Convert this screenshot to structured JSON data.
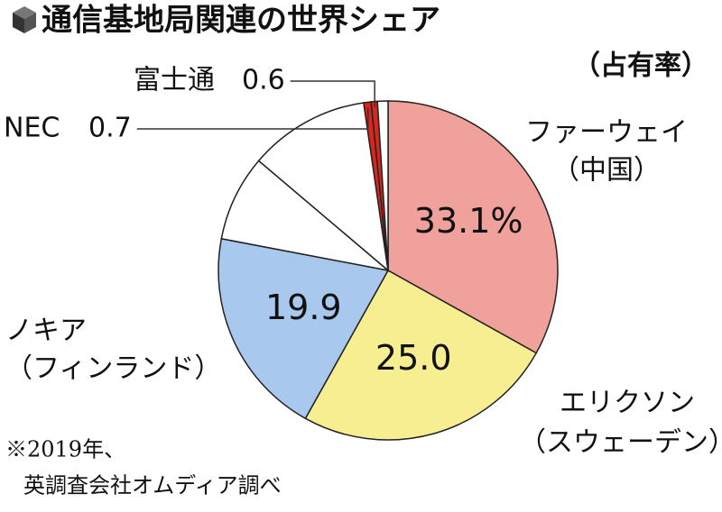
{
  "chart_data": {
    "type": "pie",
    "title": "通信基地局関連の世界シェア",
    "subtitle": "（占有率）",
    "categories": [
      [
        "ファーウェイ",
        "（中国）"
      ],
      [
        "エリクソン",
        "（スウェーデン）"
      ],
      [
        "ノキア",
        "（フィンランド）"
      ],
      null,
      null,
      [
        "NEC"
      ],
      [
        "富士通"
      ],
      null
    ],
    "values": [
      33.1,
      25.0,
      19.9,
      8.2,
      11.5,
      0.7,
      0.6,
      1.0
    ],
    "value_labels": [
      "33.1%",
      "25.0",
      "19.9",
      null,
      null,
      "0.7",
      "0.6",
      null
    ],
    "colors": [
      "#f0a19b",
      "#f7ee92",
      "#a9c8ee",
      "#ffffff",
      "#ffffff",
      "#d8261c",
      "#d8261c",
      "#ffffff"
    ],
    "notes": [
      "※2019年、",
      "英調査会社オムディア調べ"
    ]
  }
}
